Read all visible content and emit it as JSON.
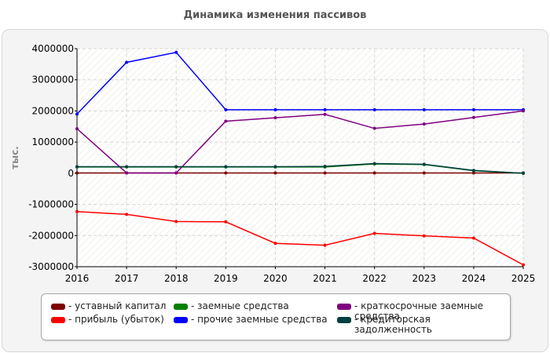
{
  "chart_data": {
    "type": "line",
    "title": "Динамика изменения пассивов",
    "ylabel": "тыс.",
    "xlabel": "",
    "x": [
      2016,
      2017,
      2018,
      2019,
      2020,
      2021,
      2022,
      2023,
      2024,
      2025
    ],
    "ylim": [
      -3000000,
      4000000
    ],
    "yticks": [
      "4000000",
      "3000000",
      "2000000",
      "1000000",
      "0",
      "-1000000",
      "-2000000",
      "-3000000"
    ],
    "ytick_values": [
      4000000,
      3000000,
      2000000,
      1000000,
      0,
      -1000000,
      -2000000,
      -3000000
    ],
    "grid": true,
    "legend_position": "bottom",
    "series": [
      {
        "name": "- уставный капитал",
        "color": "#800000",
        "values": [
          10000,
          10000,
          10000,
          10000,
          10000,
          10000,
          10000,
          10000,
          10000,
          10000
        ]
      },
      {
        "name": "- прибыль (убыток)",
        "color": "#ff0000",
        "values": [
          -1230000,
          -1320000,
          -1550000,
          -1560000,
          -2250000,
          -2310000,
          -1930000,
          -2010000,
          -2080000,
          -2940000
        ]
      },
      {
        "name": "- заемные средства",
        "color": "#008000",
        "values": [
          200000,
          200000,
          200000,
          200000,
          200000,
          200000,
          300000,
          280000,
          80000,
          0
        ]
      },
      {
        "name": "- прочие заемные средства",
        "color": "#0000ff",
        "values": [
          1900000,
          3560000,
          3880000,
          2040000,
          2040000,
          2040000,
          2040000,
          2040000,
          2040000,
          2040000
        ]
      },
      {
        "name": "- краткосрочные заемные средства",
        "color": "#800080",
        "values": [
          1430000,
          10000,
          10000,
          1670000,
          1780000,
          1890000,
          1440000,
          1580000,
          1790000,
          2000000
        ]
      },
      {
        "name": "- кредиторская задолженность",
        "color": "#004040",
        "values": [
          210000,
          210000,
          210000,
          210000,
          210000,
          220000,
          310000,
          290000,
          90000,
          0
        ]
      }
    ]
  }
}
